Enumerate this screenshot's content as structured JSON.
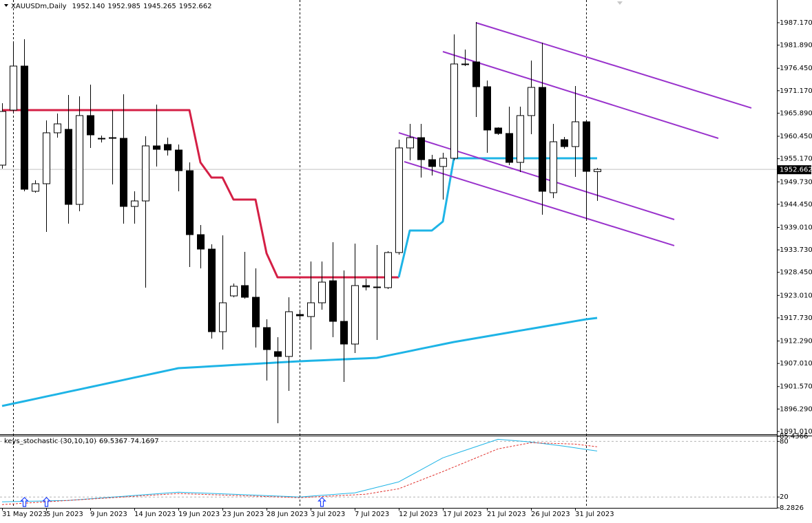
{
  "chart_data": [
    {
      "type": "candlestick",
      "title": "XAUUSDm,Daily",
      "last_bar_labels": [
        "1952.140",
        "1952.985",
        "1945.265",
        "1952.662"
      ],
      "categories": [
        "31 May 2023",
        null,
        null,
        null,
        "5 Jun 2023",
        null,
        null,
        null,
        "9 Jun 2023",
        null,
        null,
        null,
        "14 Jun 2023",
        null,
        null,
        null,
        "19 Jun 2023",
        null,
        null,
        null,
        "23 Jun 2023",
        null,
        null,
        null,
        "28 Jun 2023",
        null,
        null,
        null,
        "3 Jul 2023",
        null,
        null,
        null,
        "7 Jul 2023",
        null,
        null,
        null,
        "12 Jul 2023",
        null,
        null,
        null,
        "17 Jul 2023",
        null,
        null,
        null,
        "21 Jul 2023",
        null,
        null,
        null,
        "26 Jul 2023",
        null,
        null,
        null,
        "31 Jul 2023",
        null,
        null
      ],
      "open": [
        1953.66,
        1966.61,
        1976.97,
        1947.51,
        1949.29,
        1961.27,
        1962.08,
        1944.43,
        1965.32,
        1959.97,
        1959.97,
        1959.97,
        1943.95,
        1945.24,
        1958.19,
        1958.52,
        1957.22,
        1952.36,
        1937.31,
        1933.91,
        1914.48,
        1922.9,
        1925.33,
        1922.58,
        1915.45,
        1909.79,
        1908.65,
        1918.53,
        1918.04,
        1921.28,
        1926.46,
        1916.91,
        1911.57,
        1925.33,
        1925.0,
        1924.84,
        1933.1,
        1957.71,
        1960.13,
        1954.95,
        1953.34,
        1955.28,
        1977.46,
        1977.94,
        1972.11,
        1962.4,
        1961.11,
        1954.31,
        1965.32,
        1971.95,
        1947.18,
        1959.65,
        1958.03,
        1963.86,
        1952.14
      ],
      "high": [
        1968.23,
        1982.48,
        1983.28,
        1950.1,
        1964.18,
        1965.8,
        1970.17,
        1969.85,
        1972.6,
        1960.62,
        1966.61,
        1970.33,
        1947.51,
        1960.46,
        1967.9,
        1960.13,
        1958.52,
        1954.31,
        1939.57,
        1935.04,
        1937.15,
        1925.81,
        1933.26,
        1929.38,
        1917.4,
        1913.19,
        1922.58,
        1919.18,
        1930.99,
        1930.99,
        1935.53,
        1928.89,
        1935.2,
        1926.95,
        1934.88,
        1933.42,
        1959.65,
        1963.37,
        1963.37,
        1956.09,
        1956.57,
        1984.42,
        1980.86,
        1987.33,
        1973.57,
        1962.56,
        1967.42,
        1967.42,
        1978.27,
        1982.48,
        1963.37,
        1960.3,
        1972.28,
        1964.34,
        1952.985
      ],
      "low": [
        1952.85,
        1965.8,
        1947.51,
        1947.18,
        1937.96,
        1960.13,
        1939.9,
        1942.81,
        1957.71,
        1959.0,
        1949.13,
        1939.9,
        1939.9,
        1924.84,
        1953.34,
        1955.93,
        1947.51,
        1929.7,
        1929.38,
        1912.86,
        1910.27,
        1922.58,
        1922.25,
        1910.76,
        1902.99,
        1892.95,
        1900.56,
        1917.72,
        1910.27,
        1919.66,
        1913.19,
        1902.66,
        1909.46,
        1924.19,
        1912.54,
        1924.52,
        1932.61,
        1954.79,
        1950.75,
        1951.23,
        1945.56,
        1954.79,
        1976.97,
        1964.99,
        1956.57,
        1960.78,
        1953.66,
        1952.04,
        1960.94,
        1942.0,
        1945.89,
        1957.54,
        1950.91,
        1940.71,
        1945.265
      ],
      "close": [
        1966.29,
        1976.97,
        1947.99,
        1949.29,
        1961.27,
        1963.37,
        1944.43,
        1965.32,
        1960.78,
        1959.81,
        1960.13,
        1943.95,
        1945.24,
        1958.19,
        1957.38,
        1957.22,
        1952.36,
        1937.31,
        1933.91,
        1914.48,
        1921.28,
        1925.17,
        1922.58,
        1915.61,
        1910.27,
        1908.65,
        1919.18,
        1918.21,
        1921.28,
        1926.14,
        1916.91,
        1911.57,
        1925.33,
        1925.0,
        1924.84,
        1933.1,
        1957.71,
        1960.13,
        1954.95,
        1953.34,
        1955.28,
        1977.46,
        1977.3,
        1972.11,
        1961.92,
        1961.11,
        1954.31,
        1965.32,
        1971.95,
        1947.51,
        1959.16,
        1958.03,
        1963.86,
        1952.2,
        1952.662
      ],
      "up_color": "#ffffff",
      "down_color": "#000000",
      "ylim": [
        1890.52,
        1992.51
      ],
      "yticks": [
        {
          "value": 1987.17,
          "label": "1987.170"
        },
        {
          "value": 1981.89,
          "label": "1981.890"
        },
        {
          "value": 1976.45,
          "label": "1976.450"
        },
        {
          "value": 1971.17,
          "label": "1971.170"
        },
        {
          "value": 1965.89,
          "label": "1965.890"
        },
        {
          "value": 1960.45,
          "label": "1960.450"
        },
        {
          "value": 1955.17,
          "label": "1955.170"
        },
        {
          "value": 1949.73,
          "label": "1949.730"
        },
        {
          "value": 1944.45,
          "label": "1944.450"
        },
        {
          "value": 1939.01,
          "label": "1939.010"
        },
        {
          "value": 1933.73,
          "label": "1933.730"
        },
        {
          "value": 1928.45,
          "label": "1928.450"
        },
        {
          "value": 1923.01,
          "label": "1923.010"
        },
        {
          "value": 1917.73,
          "label": "1917.730"
        },
        {
          "value": 1912.29,
          "label": "1912.290"
        },
        {
          "value": 1907.01,
          "label": "1907.010"
        },
        {
          "value": 1901.57,
          "label": "1901.570"
        },
        {
          "value": 1896.29,
          "label": "1896.290"
        },
        {
          "value": 1891.01,
          "label": "1891.010"
        }
      ],
      "lines": [
        {
          "color": "#d41f45",
          "width": 3,
          "values": [
            1966.61,
            1966.61,
            1966.61,
            1966.61,
            1966.61,
            1966.61,
            1966.61,
            1966.61,
            1966.61,
            1966.61,
            1966.61,
            1966.61,
            1966.61,
            1966.61,
            1966.61,
            1966.61,
            1966.61,
            1966.61,
            1954.31,
            1950.75,
            1950.75,
            1945.56,
            1945.56,
            1945.56,
            1932.94,
            1927.27,
            1927.27,
            1927.27,
            1927.27,
            1927.27,
            1927.27,
            1927.27,
            1927.27,
            1927.27,
            1927.27,
            1927.27,
            1927.27,
            null,
            null,
            null,
            null,
            null,
            null,
            null,
            null,
            null,
            null,
            null,
            null,
            null,
            null,
            null,
            null,
            null,
            null
          ]
        },
        {
          "color": "#1eb4e6",
          "width": 3,
          "values": [
            null,
            null,
            null,
            null,
            null,
            null,
            null,
            null,
            null,
            null,
            null,
            null,
            null,
            null,
            null,
            null,
            null,
            null,
            null,
            null,
            null,
            null,
            null,
            null,
            null,
            null,
            null,
            null,
            null,
            null,
            null,
            null,
            null,
            null,
            null,
            null,
            1927.27,
            1938.28,
            1938.28,
            1938.28,
            1940.38,
            1955.28,
            1955.28,
            1955.28,
            1955.28,
            1955.28,
            1955.28,
            1955.28,
            1955.28,
            1955.28,
            1955.28,
            1955.28,
            1955.28,
            1955.28,
            1955.28
          ]
        },
        {
          "color": "#1eb4e6",
          "width": 3,
          "values": [
            1897.0,
            1897.56,
            1898.11,
            1898.67,
            1899.23,
            1899.78,
            1900.34,
            1900.89,
            1901.45,
            1902.01,
            1902.56,
            1903.12,
            1903.68,
            1904.23,
            1904.79,
            1905.34,
            1905.9,
            1906.05,
            1906.19,
            1906.34,
            1906.49,
            1906.64,
            1906.78,
            1906.93,
            1907.08,
            1907.23,
            1907.37,
            1907.52,
            1907.64,
            1907.75,
            1907.87,
            1907.98,
            1908.1,
            1908.21,
            1908.33,
            1908.86,
            1909.39,
            1909.92,
            1910.46,
            1910.99,
            1911.52,
            1912.05,
            1912.5,
            1912.94,
            1913.39,
            1913.83,
            1914.28,
            1914.73,
            1915.17,
            1915.62,
            1916.06,
            1916.51,
            1916.96,
            1917.4,
            1917.72
          ]
        }
      ],
      "trendlines": [
        {
          "color": "#9932cc",
          "x": [
            43,
            68
          ],
          "values": [
            1987.17,
            1967.1
          ]
        },
        {
          "color": "#9932cc",
          "x": [
            40,
            65
          ],
          "values": [
            1980.37,
            1959.97
          ]
        },
        {
          "color": "#9932cc",
          "x": [
            36,
            61
          ],
          "values": [
            1961.27,
            1940.87
          ]
        },
        {
          "color": "#9932cc",
          "x": [
            36.5,
            61
          ],
          "values": [
            1954.47,
            1934.72
          ]
        }
      ],
      "separators": [
        1,
        27,
        53
      ]
    },
    {
      "type": "line",
      "title": "keys_stochastic (30,10,10)",
      "series": [
        {
          "color": "#1eb4e6",
          "values": [
            14.81,
            15.06,
            15.31,
            15.56,
            15.8,
            16.05,
            16.3,
            17.19,
            18.08,
            18.97,
            19.86,
            20.75,
            21.63,
            22.52,
            23.41,
            24.3,
            25.19,
            24.74,
            24.3,
            23.85,
            23.41,
            22.96,
            22.47,
            21.97,
            21.48,
            20.99,
            20.49,
            20.0,
            20.89,
            21.78,
            22.66,
            23.55,
            24.44,
            27.41,
            30.37,
            33.34,
            36.3,
            42.78,
            49.26,
            55.74,
            62.22,
            66.22,
            70.22,
            74.22,
            78.22,
            82.22,
            81.23,
            80.25,
            79.26,
            77.78,
            76.29,
            74.81,
            73.05,
            71.29,
            69.5367
          ]
        },
        {
          "color": "#e0302c",
          "dashed": true,
          "values": [
            11.85,
            12.59,
            13.33,
            14.07,
            14.81,
            15.55,
            16.3,
            17.04,
            17.78,
            18.52,
            19.26,
            20.0,
            20.74,
            21.48,
            22.22,
            22.96,
            23.7,
            23.3,
            22.89,
            22.49,
            22.09,
            21.68,
            21.28,
            20.87,
            20.47,
            20.07,
            19.66,
            19.26,
            19.88,
            20.49,
            21.11,
            21.73,
            22.34,
            22.96,
            24.94,
            26.91,
            28.89,
            33.52,
            38.15,
            42.78,
            47.41,
            52.3,
            57.19,
            62.07,
            66.96,
            71.85,
            74.07,
            76.3,
            78.52,
            78.15,
            77.78,
            77.41,
            77.04,
            75.6,
            74.1697
          ]
        }
      ],
      "ylim": [
        8.2826,
        85.4366
      ],
      "yticks": [
        8.2826,
        20,
        80,
        85.4366
      ],
      "arrows": [
        2,
        4,
        29
      ],
      "arrow_color": "#1a3cff"
    }
  ]
}
